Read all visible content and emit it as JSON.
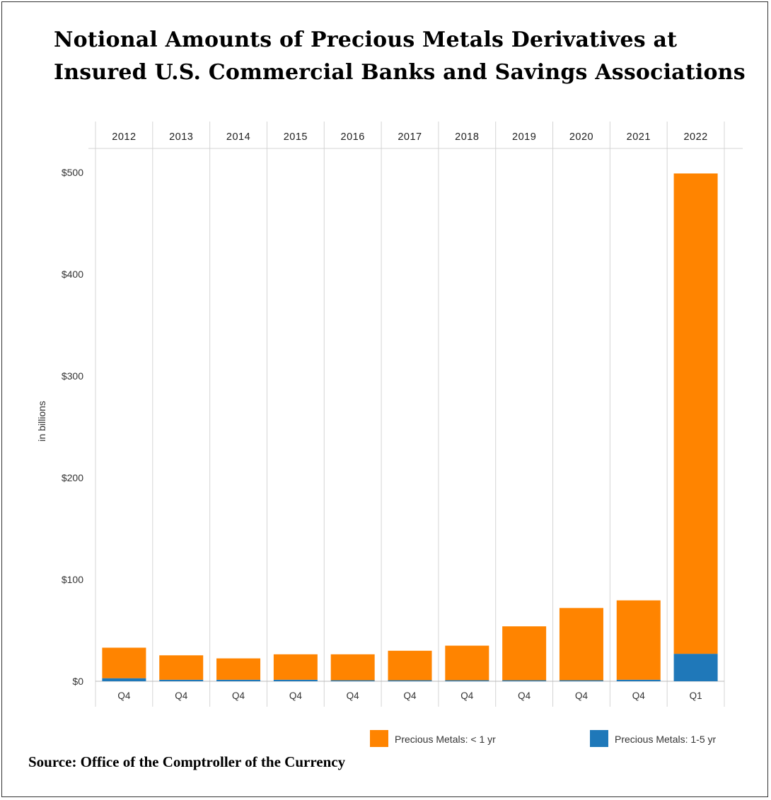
{
  "title_line1": "Notional Amounts of Precious Metals Derivatives at",
  "title_line2": "Insured U.S. Commercial Banks and Savings Associations",
  "source": "Source: Office of the Comptroller of the Currency",
  "colors": {
    "lt1yr": "#ff8400",
    "oneto5yr": "#1f78b9",
    "grid": "#d4d4d4",
    "text": "#333333"
  },
  "chart_data": {
    "type": "bar",
    "stacked": true,
    "title": "Notional Amounts of Precious Metals Derivatives at Insured U.S. Commercial Banks and Savings Associations",
    "ylabel": "in billions",
    "ylim": [
      0,
      500
    ],
    "yticks": [
      0,
      100,
      200,
      300,
      400,
      500
    ],
    "ytick_labels": [
      "$0",
      "$100",
      "$200",
      "$300",
      "$400",
      "$500"
    ],
    "years": [
      "2012",
      "2013",
      "2014",
      "2015",
      "2016",
      "2017",
      "2018",
      "2019",
      "2020",
      "2021",
      "2022"
    ],
    "quarters": [
      "Q4",
      "Q4",
      "Q4",
      "Q4",
      "Q4",
      "Q4",
      "Q4",
      "Q4",
      "Q4",
      "Q4",
      "Q1"
    ],
    "series": [
      {
        "name": "Precious Metals: 1-5 yr",
        "key": "oneto5yr",
        "values": [
          3,
          1.5,
          1.5,
          1.5,
          1,
          1,
          1,
          1,
          1,
          1.5,
          27
        ]
      },
      {
        "name": "Precious Metals: < 1 yr",
        "key": "lt1yr",
        "values": [
          30,
          24,
          21,
          25,
          25.5,
          29,
          34,
          53,
          71,
          78,
          472
        ]
      }
    ],
    "legend": [
      {
        "label": "Precious Metals: < 1 yr",
        "key": "lt1yr"
      },
      {
        "label": "Precious Metals: 1-5 yr",
        "key": "oneto5yr"
      }
    ],
    "legend_position": "bottom-right",
    "grid": true
  }
}
